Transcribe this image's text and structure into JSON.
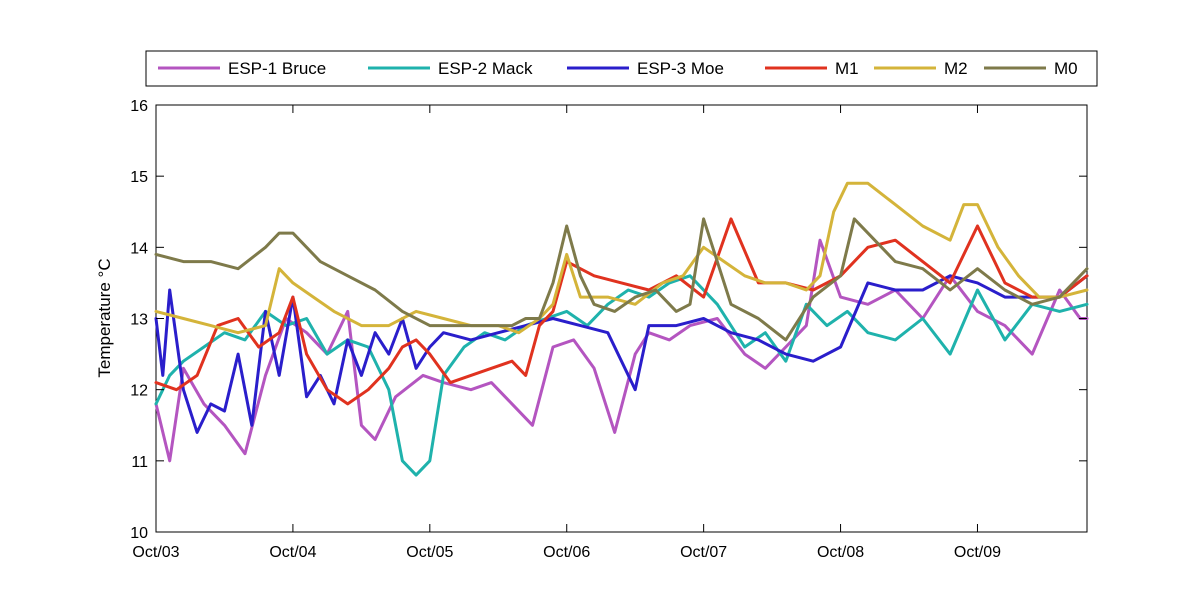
{
  "chart_data": {
    "type": "line",
    "xlabel": "",
    "ylabel": "Temperature °C",
    "ylim": [
      10,
      16
    ],
    "xlim": [
      "Oct/03",
      "Oct/09 + 0.8"
    ],
    "yticks": [
      "10",
      "11",
      "12",
      "13",
      "14",
      "15",
      "16"
    ],
    "xticks": [
      "Oct/03",
      "Oct/04",
      "Oct/05",
      "Oct/06",
      "Oct/07",
      "Oct/08",
      "Oct/09"
    ],
    "grid": false,
    "legend_position": "top",
    "series": [
      {
        "name": "ESP-1 Bruce",
        "color": "#b455c0",
        "x": [
          0,
          0.1,
          0.2,
          0.35,
          0.5,
          0.65,
          0.8,
          0.95,
          1.1,
          1.25,
          1.4,
          1.5,
          1.6,
          1.75,
          1.95,
          2.1,
          2.3,
          2.45,
          2.6,
          2.75,
          2.9,
          3.05,
          3.2,
          3.35,
          3.5,
          3.6,
          3.75,
          3.9,
          4.1,
          4.3,
          4.45,
          4.6,
          4.75,
          4.85,
          5.0,
          5.2,
          5.4,
          5.6,
          5.8,
          6.0,
          6.2,
          6.4,
          6.6,
          6.75,
          6.8
        ],
        "y": [
          11.8,
          11.0,
          12.3,
          11.8,
          11.5,
          11.1,
          12.2,
          13.0,
          12.8,
          12.5,
          13.1,
          11.5,
          11.3,
          11.9,
          12.2,
          12.1,
          12.0,
          12.1,
          11.8,
          11.5,
          12.6,
          12.7,
          12.3,
          11.4,
          12.5,
          12.8,
          12.7,
          12.9,
          13.0,
          12.5,
          12.3,
          12.6,
          12.9,
          14.1,
          13.3,
          13.2,
          13.4,
          13.0,
          13.6,
          13.1,
          12.9,
          12.5,
          13.4,
          13.0,
          13.0
        ]
      },
      {
        "name": "ESP-2 Mack",
        "color": "#1fb2ac",
        "x": [
          0,
          0.1,
          0.2,
          0.35,
          0.5,
          0.65,
          0.8,
          0.95,
          1.1,
          1.25,
          1.4,
          1.55,
          1.7,
          1.8,
          1.9,
          2.0,
          2.1,
          2.25,
          2.4,
          2.55,
          2.7,
          2.85,
          3.0,
          3.15,
          3.3,
          3.45,
          3.6,
          3.75,
          3.9,
          4.1,
          4.3,
          4.45,
          4.6,
          4.75,
          4.9,
          5.05,
          5.2,
          5.4,
          5.6,
          5.8,
          6.0,
          6.2,
          6.4,
          6.6,
          6.8
        ],
        "y": [
          11.8,
          12.2,
          12.4,
          12.6,
          12.8,
          12.7,
          13.1,
          12.9,
          13.0,
          12.5,
          12.7,
          12.6,
          12.0,
          11.0,
          10.8,
          11.0,
          12.2,
          12.6,
          12.8,
          12.7,
          12.9,
          13.0,
          13.1,
          12.9,
          13.2,
          13.4,
          13.3,
          13.5,
          13.6,
          13.2,
          12.6,
          12.8,
          12.4,
          13.2,
          12.9,
          13.1,
          12.8,
          12.7,
          13.0,
          12.5,
          13.4,
          12.7,
          13.2,
          13.1,
          13.2
        ]
      },
      {
        "name": "ESP-3 Moe",
        "color": "#2a1ecb",
        "x": [
          0,
          0.05,
          0.1,
          0.2,
          0.3,
          0.4,
          0.5,
          0.6,
          0.7,
          0.8,
          0.9,
          1.0,
          1.1,
          1.2,
          1.3,
          1.4,
          1.5,
          1.6,
          1.7,
          1.8,
          1.9,
          2.0,
          2.1,
          2.3,
          2.5,
          2.7,
          2.9,
          3.1,
          3.3,
          3.5,
          3.6,
          3.8,
          4.0,
          4.2,
          4.4,
          4.6,
          4.8,
          5.0,
          5.2,
          5.4,
          5.6,
          5.8,
          6.0,
          6.2,
          6.4,
          6.6,
          6.8
        ],
        "y": [
          13.0,
          12.2,
          13.4,
          12.0,
          11.4,
          11.8,
          11.7,
          12.5,
          11.5,
          13.1,
          12.2,
          13.3,
          11.9,
          12.2,
          11.8,
          12.7,
          12.2,
          12.8,
          12.5,
          13.0,
          12.3,
          12.6,
          12.8,
          12.7,
          12.8,
          12.9,
          13.0,
          12.9,
          12.8,
          12.0,
          12.9,
          12.9,
          13.0,
          12.8,
          12.7,
          12.5,
          12.4,
          12.6,
          13.5,
          13.4,
          13.4,
          13.6,
          13.5,
          13.3,
          13.3,
          13.3,
          13.6
        ]
      },
      {
        "name": "M1",
        "color": "#e0321f",
        "x": [
          0,
          0.15,
          0.3,
          0.45,
          0.6,
          0.75,
          0.9,
          1.0,
          1.1,
          1.25,
          1.4,
          1.55,
          1.7,
          1.8,
          1.9,
          2.0,
          2.15,
          2.3,
          2.45,
          2.6,
          2.7,
          2.8,
          2.9,
          3.0,
          3.2,
          3.4,
          3.6,
          3.8,
          4.0,
          4.2,
          4.4,
          4.6,
          4.8,
          5.0,
          5.2,
          5.4,
          5.6,
          5.8,
          6.0,
          6.2,
          6.4,
          6.6,
          6.8
        ],
        "y": [
          12.1,
          12.0,
          12.2,
          12.9,
          13.0,
          12.6,
          12.8,
          13.3,
          12.5,
          12.0,
          11.8,
          12.0,
          12.3,
          12.6,
          12.7,
          12.5,
          12.1,
          12.2,
          12.3,
          12.4,
          12.2,
          12.9,
          13.1,
          13.8,
          13.6,
          13.5,
          13.4,
          13.6,
          13.3,
          14.4,
          13.5,
          13.5,
          13.4,
          13.6,
          14.0,
          14.1,
          13.8,
          13.5,
          14.3,
          13.5,
          13.3,
          13.3,
          13.6
        ]
      },
      {
        "name": "M2",
        "color": "#d4b43a",
        "x": [
          0,
          0.2,
          0.4,
          0.6,
          0.8,
          0.9,
          1.0,
          1.15,
          1.3,
          1.5,
          1.7,
          1.9,
          2.1,
          2.3,
          2.5,
          2.65,
          2.8,
          2.9,
          3.0,
          3.1,
          3.3,
          3.5,
          3.7,
          3.85,
          4.0,
          4.15,
          4.3,
          4.45,
          4.6,
          4.75,
          4.85,
          4.95,
          5.05,
          5.2,
          5.4,
          5.6,
          5.8,
          5.9,
          6.0,
          6.15,
          6.3,
          6.45,
          6.6,
          6.8
        ],
        "y": [
          13.1,
          13.0,
          12.9,
          12.8,
          12.9,
          13.7,
          13.5,
          13.3,
          13.1,
          12.9,
          12.9,
          13.1,
          13.0,
          12.9,
          12.9,
          12.8,
          13.0,
          13.2,
          13.9,
          13.3,
          13.3,
          13.2,
          13.5,
          13.6,
          14.0,
          13.8,
          13.6,
          13.5,
          13.5,
          13.4,
          13.6,
          14.5,
          14.9,
          14.9,
          14.6,
          14.3,
          14.1,
          14.6,
          14.6,
          14.0,
          13.6,
          13.3,
          13.3,
          13.4
        ]
      },
      {
        "name": "M0",
        "color": "#7e7a4a",
        "x": [
          0,
          0.2,
          0.4,
          0.6,
          0.8,
          0.9,
          1.0,
          1.1,
          1.2,
          1.4,
          1.6,
          1.8,
          2.0,
          2.2,
          2.4,
          2.6,
          2.7,
          2.8,
          2.9,
          3.0,
          3.1,
          3.2,
          3.35,
          3.5,
          3.65,
          3.8,
          3.9,
          4.0,
          4.2,
          4.4,
          4.6,
          4.8,
          5.0,
          5.1,
          5.2,
          5.4,
          5.6,
          5.8,
          6.0,
          6.2,
          6.4,
          6.6,
          6.8
        ],
        "y": [
          13.9,
          13.8,
          13.8,
          13.7,
          14.0,
          14.2,
          14.2,
          14.0,
          13.8,
          13.6,
          13.4,
          13.1,
          12.9,
          12.9,
          12.9,
          12.9,
          13.0,
          13.0,
          13.5,
          14.3,
          13.6,
          13.2,
          13.1,
          13.3,
          13.4,
          13.1,
          13.2,
          14.4,
          13.2,
          13.0,
          12.7,
          13.3,
          13.6,
          14.4,
          14.2,
          13.8,
          13.7,
          13.4,
          13.7,
          13.4,
          13.2,
          13.3,
          13.7
        ]
      }
    ]
  }
}
